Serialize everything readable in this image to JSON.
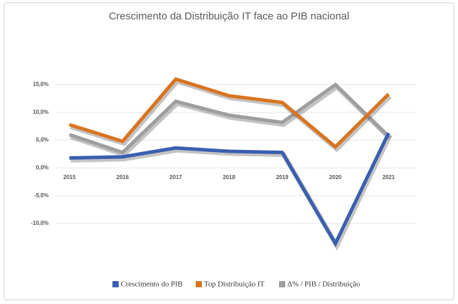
{
  "chart_data": {
    "type": "line",
    "title": "Crescimento da Distribuição IT face ao PIB nacional",
    "categories": [
      "2015",
      "2016",
      "2017",
      "2018",
      "2019",
      "2020",
      "2021"
    ],
    "series": [
      {
        "name": "Crescimento do PIB",
        "color": "#3a5fb0",
        "values": [
          1.8,
          2.0,
          3.6,
          3.0,
          2.8,
          -13.6,
          6.3
        ]
      },
      {
        "name": "Top Distribuição IT",
        "color": "#d9741f",
        "values": [
          7.8,
          4.8,
          16.0,
          13.0,
          11.8,
          3.8,
          13.3
        ]
      },
      {
        "name": "Δ% / PIB / Distribuição",
        "color": "#9e9e9e",
        "values": [
          6.0,
          2.8,
          12.0,
          9.5,
          8.2,
          15.0,
          5.7
        ]
      }
    ],
    "ylim": [
      -18,
      20
    ],
    "yticks": [
      {
        "value": -10,
        "label": "-10,0%"
      },
      {
        "value": -5,
        "label": "-5,0%"
      },
      {
        "value": 0,
        "label": "0,0%"
      },
      {
        "value": 5,
        "label": "5,0%"
      },
      {
        "value": 10,
        "label": "10,0%"
      },
      {
        "value": 15,
        "label": "15,0%"
      }
    ],
    "grid": true,
    "legend": "bottom"
  }
}
